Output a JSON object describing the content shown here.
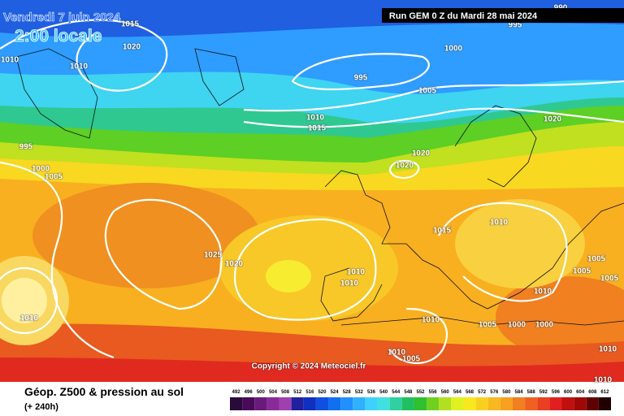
{
  "header": {
    "date": "Vendredi 7 juin 2024",
    "time": "2:00 locale",
    "run": "Run GEM 0 Z du Mardi 28 mai 2024"
  },
  "map": {
    "isobar_labels": [
      990,
      1015,
      1020,
      1010,
      1010,
      995,
      1000,
      995,
      1005,
      1010,
      1015,
      1020,
      995,
      1000,
      1005,
      1020,
      1020,
      1010,
      1015,
      1025,
      1020,
      1010,
      1010,
      1005,
      1005,
      1005,
      1010,
      1010,
      1010,
      1005,
      1000,
      1000,
      1010,
      1005,
      1010,
      1010
    ],
    "copyright": "Copyright © 2024 Meteociel.fr"
  },
  "legend": {
    "title": "Géop. Z500 & pression au sol",
    "lead_time": "(+ 240h)",
    "scale": {
      "labels": [
        492,
        496,
        500,
        504,
        508,
        512,
        516,
        520,
        524,
        528,
        532,
        536,
        540,
        544,
        548,
        552,
        556,
        560,
        564,
        568,
        572,
        576,
        580,
        584,
        588,
        592,
        596,
        600,
        604,
        608,
        612
      ],
      "colors": [
        "#2a0a3a",
        "#4a0a5a",
        "#6a1a7a",
        "#8a2a9a",
        "#a040b0",
        "#2020a0",
        "#1030c0",
        "#1050e0",
        "#1070f0",
        "#2090ff",
        "#30b0ff",
        "#40d0ff",
        "#40e0e0",
        "#30d0a0",
        "#20c060",
        "#30c030",
        "#70d020",
        "#b0e020",
        "#e0f020",
        "#f8e820",
        "#f8d020",
        "#f8b820",
        "#f8a020",
        "#f08020",
        "#f06020",
        "#e84020",
        "#e02020",
        "#c01010",
        "#a00808",
        "#600000",
        "#200000"
      ]
    }
  }
}
